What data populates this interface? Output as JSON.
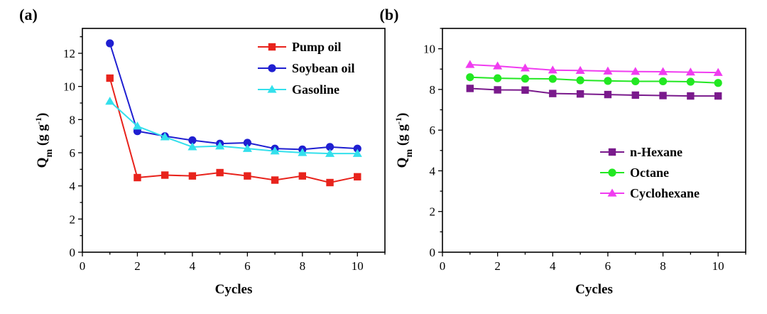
{
  "chart_data": [
    {
      "panel_label": "(a)",
      "type": "line",
      "xlabel": "Cycles",
      "ylabel": "Qm (g g-1)",
      "ylabel_parts": {
        "base": "Q",
        "sub": "m",
        "unit_open": " (g g",
        "sup": "-1",
        "unit_close": ")"
      },
      "xlim": [
        0,
        11
      ],
      "ylim": [
        0,
        13.5
      ],
      "xticks": [
        0,
        2,
        4,
        6,
        8,
        10
      ],
      "yticks": [
        0,
        2,
        4,
        6,
        8,
        10,
        12
      ],
      "legend_position": "top-right",
      "x": [
        1,
        2,
        3,
        4,
        5,
        6,
        7,
        8,
        9,
        10
      ],
      "series": [
        {
          "name": "Pump oil",
          "color": "#e8231c",
          "marker": "square",
          "values": [
            10.5,
            4.5,
            4.65,
            4.6,
            4.8,
            4.6,
            4.35,
            4.6,
            4.2,
            4.55
          ]
        },
        {
          "name": "Soybean oil",
          "color": "#1f1fd1",
          "marker": "circle",
          "values": [
            12.6,
            7.3,
            7.0,
            6.75,
            6.55,
            6.6,
            6.25,
            6.2,
            6.35,
            6.25
          ]
        },
        {
          "name": "Gasoline",
          "color": "#33e0ec",
          "marker": "triangle",
          "values": [
            9.1,
            7.6,
            6.95,
            6.35,
            6.4,
            6.25,
            6.1,
            6.0,
            5.95,
            5.95
          ]
        }
      ]
    },
    {
      "panel_label": "(b)",
      "type": "line",
      "xlabel": "Cycles",
      "ylabel": "Qm (g g-1)",
      "ylabel_parts": {
        "base": "Q",
        "sub": "m",
        "unit_open": " (g g",
        "sup": "-1",
        "unit_close": ")"
      },
      "xlim": [
        0,
        11
      ],
      "ylim": [
        0,
        11
      ],
      "xticks": [
        0,
        2,
        4,
        6,
        8,
        10
      ],
      "yticks": [
        0,
        2,
        4,
        6,
        8,
        10
      ],
      "legend_position": "center-right",
      "x": [
        1,
        2,
        3,
        4,
        5,
        6,
        7,
        8,
        9,
        10
      ],
      "series": [
        {
          "name": "n-Hexane",
          "color": "#7a1a8c",
          "marker": "square",
          "values": [
            8.05,
            7.98,
            7.97,
            7.8,
            7.78,
            7.75,
            7.72,
            7.7,
            7.68,
            7.68
          ]
        },
        {
          "name": "Octane",
          "color": "#22e822",
          "marker": "circle",
          "values": [
            8.6,
            8.55,
            8.53,
            8.52,
            8.45,
            8.42,
            8.4,
            8.4,
            8.38,
            8.32
          ]
        },
        {
          "name": "Cyclohexane",
          "color": "#f03cf0",
          "marker": "triangle",
          "values": [
            9.22,
            9.15,
            9.05,
            8.95,
            8.93,
            8.9,
            8.88,
            8.87,
            8.85,
            8.83
          ]
        }
      ]
    }
  ]
}
